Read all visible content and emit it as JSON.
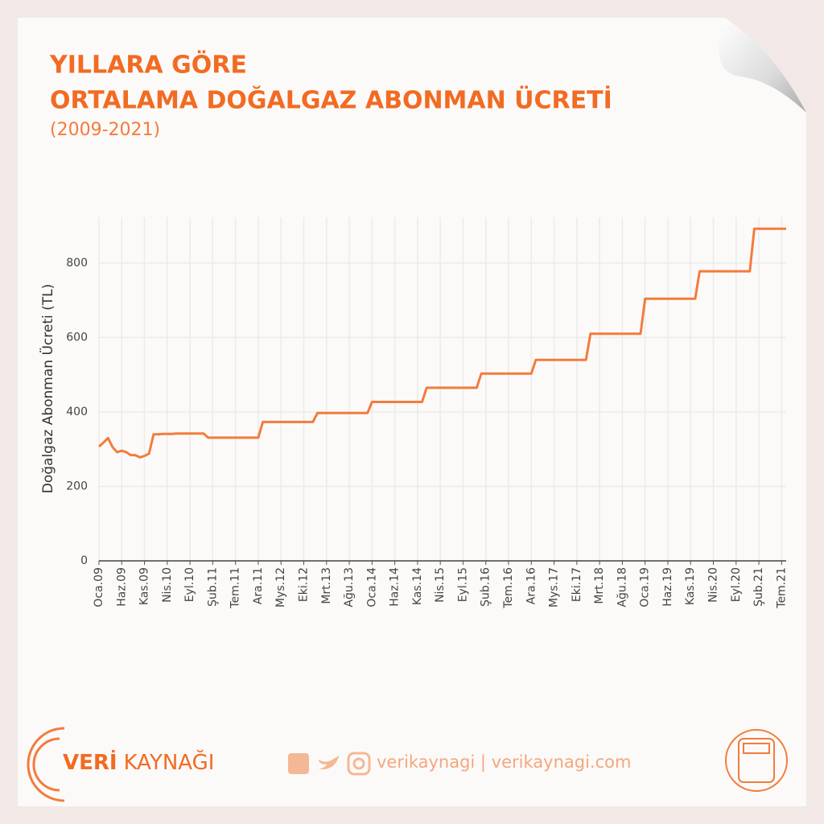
{
  "chart_data": {
    "type": "line",
    "title": [
      "YILLARA GÖRE",
      "ORTALAMA DOĞALGAZ ABONMAN ÜCRETİ"
    ],
    "subtitle": "(2009-2021)",
    "y_label": "Doğalgaz Abonman Ücreti (TL)",
    "color": "#f47b3c",
    "grid": true,
    "ylim": [
      0,
      923
    ],
    "yticks": [
      0,
      200,
      400,
      600,
      800
    ],
    "categories": [
      "Oca.09",
      null,
      null,
      null,
      null,
      "Haz.09",
      null,
      null,
      null,
      null,
      "Kas.09",
      null,
      null,
      null,
      null,
      "Nis.10",
      null,
      null,
      null,
      null,
      "Eyl.10",
      null,
      null,
      null,
      null,
      "Şub.11",
      null,
      null,
      null,
      null,
      "Tem.11",
      null,
      null,
      null,
      null,
      "Ara.11",
      null,
      null,
      null,
      null,
      "Mys.12",
      null,
      null,
      null,
      null,
      "Eki.12",
      null,
      null,
      null,
      null,
      "Mrt.13",
      null,
      null,
      null,
      null,
      "Ağu.13",
      null,
      null,
      null,
      null,
      "Oca.14",
      null,
      null,
      null,
      null,
      "Haz.14",
      null,
      null,
      null,
      null,
      "Kas.14",
      null,
      null,
      null,
      null,
      "Nis.15",
      null,
      null,
      null,
      null,
      "Eyl.15",
      null,
      null,
      null,
      null,
      "Şub.16",
      null,
      null,
      null,
      null,
      "Tem.16",
      null,
      null,
      null,
      null,
      "Ara.16",
      null,
      null,
      null,
      null,
      "Mys.17",
      null,
      null,
      null,
      null,
      "Eki.17",
      null,
      null,
      null,
      null,
      "Mrt.18",
      null,
      null,
      null,
      null,
      "Ağu.18",
      null,
      null,
      null,
      null,
      "Oca.19",
      null,
      null,
      null,
      null,
      "Haz.19",
      null,
      null,
      null,
      null,
      "Kas.19",
      null,
      null,
      null,
      null,
      "Nis.20",
      null,
      null,
      null,
      null,
      "Eyl.20",
      null,
      null,
      null,
      null,
      "Şub.21",
      null,
      null,
      null,
      null,
      "Tem.21",
      null
    ],
    "values": [
      307,
      318,
      330,
      305,
      292,
      296,
      292,
      284,
      284,
      278,
      282,
      288,
      340,
      340,
      341,
      341,
      341,
      342,
      342,
      342,
      342,
      342,
      342,
      342,
      331,
      331,
      331,
      331,
      331,
      331,
      331,
      331,
      331,
      331,
      331,
      331,
      373,
      373,
      373,
      373,
      373,
      373,
      373,
      373,
      373,
      373,
      373,
      373,
      397,
      397,
      397,
      397,
      397,
      397,
      397,
      397,
      397,
      397,
      397,
      397,
      427,
      427,
      427,
      427,
      427,
      427,
      427,
      427,
      427,
      427,
      427,
      427,
      465,
      465,
      465,
      465,
      465,
      465,
      465,
      465,
      465,
      465,
      465,
      465,
      503,
      503,
      503,
      503,
      503,
      503,
      503,
      503,
      503,
      503,
      503,
      503,
      540,
      540,
      540,
      540,
      540,
      540,
      540,
      540,
      540,
      540,
      540,
      540,
      610,
      610,
      610,
      610,
      610,
      610,
      610,
      610,
      610,
      610,
      610,
      610,
      704,
      704,
      704,
      704,
      704,
      704,
      704,
      704,
      704,
      704,
      704,
      704,
      778,
      778,
      778,
      778,
      778,
      778,
      778,
      778,
      778,
      778,
      778,
      778,
      892,
      892,
      892,
      892,
      892,
      892,
      892,
      892
    ]
  },
  "footer": {
    "brand_bold": "VERİ",
    "brand_light": "KAYNAĞI",
    "links": "verikaynagi | verikaynagi.com"
  }
}
